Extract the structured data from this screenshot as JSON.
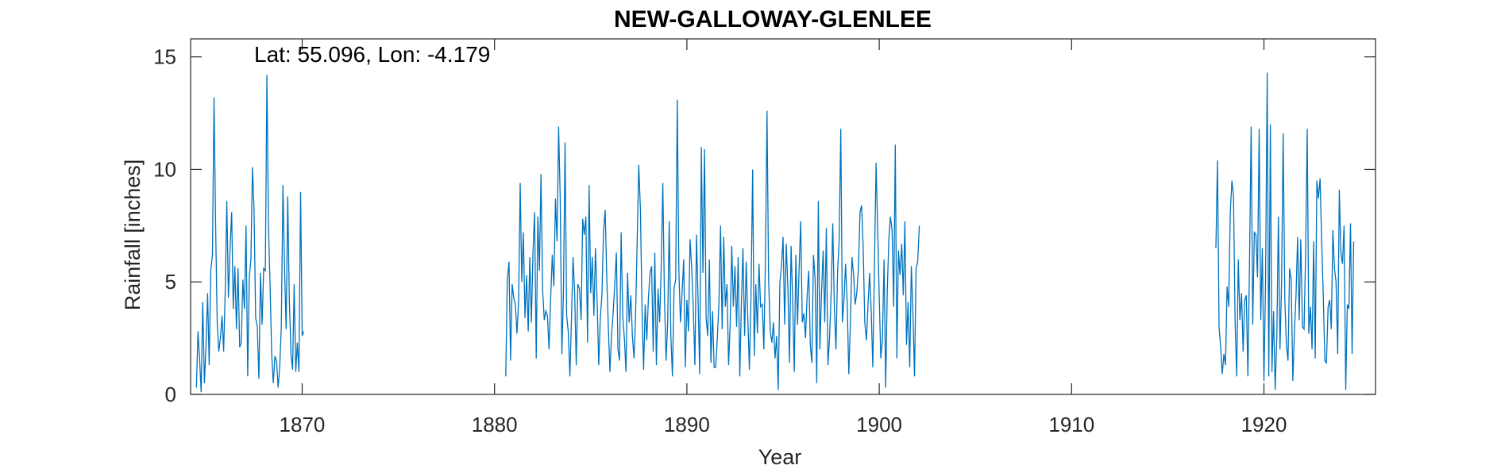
{
  "chart_data": {
    "type": "line",
    "title": "NEW-GALLOWAY-GLENLEE",
    "annotation": "Lat: 55.096, Lon: -4.179",
    "xlabel": "Year",
    "ylabel": "Rainfall [inches]",
    "xlim": [
      1864.2,
      1925.8
    ],
    "ylim": [
      0,
      15.8
    ],
    "x_ticks": [
      1870,
      1880,
      1890,
      1900,
      1910,
      1920
    ],
    "y_ticks": [
      0,
      5,
      10,
      15
    ],
    "grid": false,
    "line_color": "#0072BD",
    "series": [
      {
        "segments": [
          {
            "start": "1864-07",
            "values": [
              0.3,
              2.8,
              1.6,
              0.1,
              4.1,
              0.5,
              2.2,
              4.5,
              1.3,
              5.5,
              6.2,
              13.2,
              7.5,
              3.2,
              1.9,
              2.5,
              3.5,
              1.9,
              4.6,
              8.6,
              4.3,
              6.5,
              8.1,
              3.8,
              5.7,
              2.9,
              5.6,
              2.1,
              2.3,
              5.1,
              3.8,
              7.5,
              0.8,
              5.2,
              6.0,
              10.1,
              8.2,
              3.4,
              3.0,
              0.7,
              5.4,
              3.1,
              5.6,
              5.5,
              14.2,
              7.4,
              4.8,
              1.8,
              0.5,
              1.7,
              1.5,
              0.3,
              1.2,
              3.0,
              9.3,
              5.6,
              2.9,
              8.8,
              4.2,
              1.8,
              1.1,
              4.9,
              1.0,
              2.3,
              1.0,
              9.0,
              2.6,
              2.8
            ]
          },
          {
            "start": "1880-08",
            "values": [
              0.8,
              5.1,
              5.9,
              1.5,
              4.9,
              4.3,
              4.0,
              2.7,
              4.1,
              9.4,
              5.0,
              7.2,
              3.4,
              5.3,
              2.8,
              6.1,
              3.2,
              6.3,
              8.1,
              1.6,
              7.9,
              5.5,
              9.8,
              4.7,
              3.3,
              3.7,
              3.5,
              2.0,
              4.2,
              6.2,
              4.8,
              8.7,
              6.8,
              11.9,
              8.7,
              1.8,
              4.6,
              11.2,
              3.5,
              2.8,
              0.8,
              3.4,
              6.1,
              4.5,
              1.3,
              4.9,
              4.7,
              3.3,
              7.8,
              7.1,
              7.9,
              2.3,
              9.3,
              4.5,
              6.1,
              3.5,
              6.5,
              4.1,
              1.3,
              3.4,
              4.4,
              7.2,
              8.2,
              5.2,
              3.0,
              1.0,
              2.6,
              3.6,
              4.9,
              6.3,
              2.0,
              1.5,
              7.2,
              3.4,
              2.5,
              1.0,
              5.4,
              3.2,
              4.4,
              2.6,
              1.6,
              3.5,
              6.8,
              10.2,
              8.2,
              3.8,
              1.1,
              4.0,
              2.4,
              4.3,
              5.4,
              5.7,
              1.9,
              6.3,
              1.3,
              4.7,
              3.2,
              5.7,
              9.4,
              4.4,
              1.5,
              3.2,
              7.7,
              2.6,
              0.8,
              4.7,
              5.1,
              13.1,
              5.5,
              3.2,
              4.5,
              6.0,
              1.2,
              4.2,
              2.8,
              6.9,
              5.6,
              3.8,
              1.3,
              7.1,
              4.2,
              0.9,
              11.0,
              5.4,
              10.9,
              3.4,
              2.6,
              6.0,
              1.4,
              3.7,
              1.2,
              1.2,
              2.5,
              4.1,
              7.5,
              2.9,
              7.0,
              3.9,
              4.9,
              1.3,
              3.1,
              6.6,
              3.9,
              5.7,
              3.0,
              6.1,
              0.8,
              4.0,
              6.5,
              2.6,
              5.9,
              3.4,
              1.1,
              4.3,
              10.0,
              1.7,
              4.9,
              2.7,
              5.8,
              3.9,
              4.0,
              2.0,
              6.0,
              12.6,
              5.1,
              2.8,
              2.3,
              3.2,
              1.6,
              2.6,
              0.2,
              5.0,
              5.7,
              7.0,
              3.1,
              6.7,
              4.7,
              1.4,
              6.6,
              4.2,
              1.0,
              6.2,
              3.1,
              5.6,
              7.7,
              3.2,
              3.6,
              2.5,
              4.4,
              5.5,
              2.2,
              1.4,
              6.2,
              5.1,
              0.5,
              8.6,
              2.0,
              4.5,
              6.4,
              3.2,
              7.4,
              1.3,
              2.5,
              4.5,
              7.6,
              3.8,
              2.0,
              5.4,
              6.8,
              11.8,
              3.2,
              4.2,
              5.8,
              4.1,
              0.9,
              3.2,
              6.1,
              5.3,
              4.0,
              4.5,
              5.6,
              8.1,
              8.4,
              6.5,
              3.2,
              2.4,
              4.0,
              5.4,
              3.7,
              1.2,
              5.5,
              10.3,
              7.4,
              4.3,
              1.6,
              2.4,
              6.0,
              0.3,
              4.6,
              6.9,
              7.9,
              7.3,
              3.9,
              11.1,
              1.6,
              6.4,
              5.3,
              6.7,
              4.4,
              7.7,
              2.2,
              4.1,
              1.2,
              5.7,
              3.7,
              0.8,
              5.6,
              5.9,
              7.5
            ]
          },
          {
            "start": "1917-07",
            "values": [
              6.5,
              10.4,
              3.0,
              2.1,
              0.9,
              1.8,
              1.3,
              4.8,
              3.9,
              8.1,
              9.5,
              8.8,
              3.2,
              0.8,
              6.0,
              3.3,
              4.5,
              1.9,
              4.2,
              4.4,
              0.8,
              6.0,
              11.9,
              3.1,
              7.2,
              7.1,
              5.2,
              11.8,
              3.3,
              6.5,
              0.6,
              4.9,
              14.3,
              0.8,
              12.0,
              1.0,
              3.7,
              0.2,
              2.5,
              7.9,
              2.0,
              4.9,
              11.6,
              4.2,
              2.2,
              1.5,
              5.6,
              5.1,
              0.6,
              2.8,
              4.4,
              7.0,
              3.3,
              6.9,
              3.0,
              2.9,
              6.3,
              11.8,
              2.7,
              3.9,
              2.0,
              6.8,
              1.6,
              9.5,
              8.7,
              9.6,
              6.8,
              4.4,
              1.5,
              1.4,
              3.9,
              4.2,
              2.9,
              7.3,
              5.6,
              5.0,
              1.8,
              9.1,
              6.3,
              5.8,
              7.5,
              0.2,
              4.0,
              3.8,
              7.6,
              1.8,
              6.8
            ]
          }
        ]
      }
    ]
  }
}
